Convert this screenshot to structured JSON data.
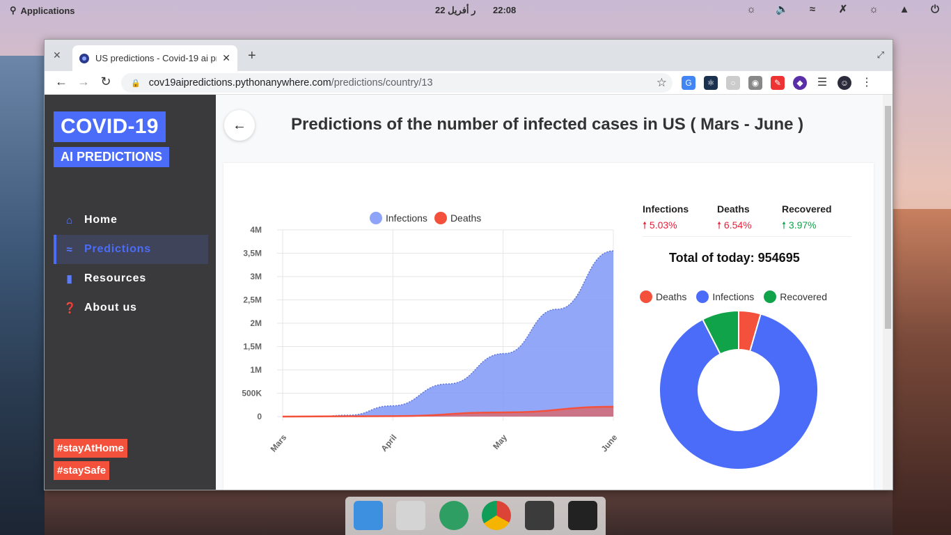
{
  "topbar": {
    "applications": "Applications",
    "date": "22 ر أفريل",
    "time": "22:08",
    "tray_icons": [
      "brightness-icon",
      "volume-icon",
      "wifi-icon",
      "bluetooth-icon",
      "night-light-icon",
      "notifications-icon",
      "power-icon"
    ]
  },
  "browser": {
    "tab_title": "US predictions - Covid-19 ai pre",
    "new_tab": "+",
    "url_host": "cov19aipredictions.pythonanywhere.com",
    "url_path": "/predictions/country/13"
  },
  "sidebar": {
    "logo_main": "COVID-19",
    "logo_sub": "AI PREDICTIONS",
    "items": [
      {
        "label": "Home",
        "icon": "home-icon"
      },
      {
        "label": "Predictions",
        "icon": "chart-icon",
        "active": true
      },
      {
        "label": "Resources",
        "icon": "document-icon"
      },
      {
        "label": "About us",
        "icon": "question-icon"
      }
    ],
    "tags": [
      "#stayAtHome",
      "#staySafe"
    ]
  },
  "main": {
    "heading": "Predictions of the number of infected cases in US ( Mars - June )",
    "stats": [
      {
        "label": "Infections",
        "value": "5.03%",
        "color": "#e8203a"
      },
      {
        "label": "Deaths",
        "value": "6.54%",
        "color": "#e8203a"
      },
      {
        "label": "Recovered",
        "value": "3.97%",
        "color": "#10a34a"
      }
    ],
    "total_label": "Total of today: 954695"
  },
  "chart_data": [
    {
      "type": "area",
      "title": "",
      "xlabel": "",
      "ylabel": "",
      "x": [
        "Mars",
        "April",
        "May",
        "June"
      ],
      "y_ticks": [
        "0",
        "500K",
        "1M",
        "1,5M",
        "2M",
        "2,5M",
        "3M",
        "3,5M",
        "4M"
      ],
      "ylim": [
        0,
        4000000
      ],
      "legend_position": "top",
      "grid": true,
      "series": [
        {
          "name": "Infections",
          "color": "#7f98f7",
          "points": [
            [
              0,
              0
            ],
            [
              0.1,
              0
            ],
            [
              0.2,
              30000
            ],
            [
              0.33,
              230000
            ],
            [
              0.5,
              700000
            ],
            [
              0.67,
              1350000
            ],
            [
              0.83,
              2300000
            ],
            [
              1,
              3550000
            ]
          ]
        },
        {
          "name": "Deaths",
          "color": "#f4513c",
          "points": [
            [
              0,
              0
            ],
            [
              0.33,
              10000
            ],
            [
              0.67,
              90000
            ],
            [
              1,
              210000
            ]
          ]
        }
      ]
    },
    {
      "type": "pie",
      "title": "",
      "legend_position": "top",
      "labels": [
        "Deaths",
        "Infections",
        "Recovered"
      ],
      "colors": [
        "#f4513c",
        "#4b6cf8",
        "#10a34a"
      ],
      "values": [
        4.5,
        88,
        7.5
      ]
    }
  ]
}
